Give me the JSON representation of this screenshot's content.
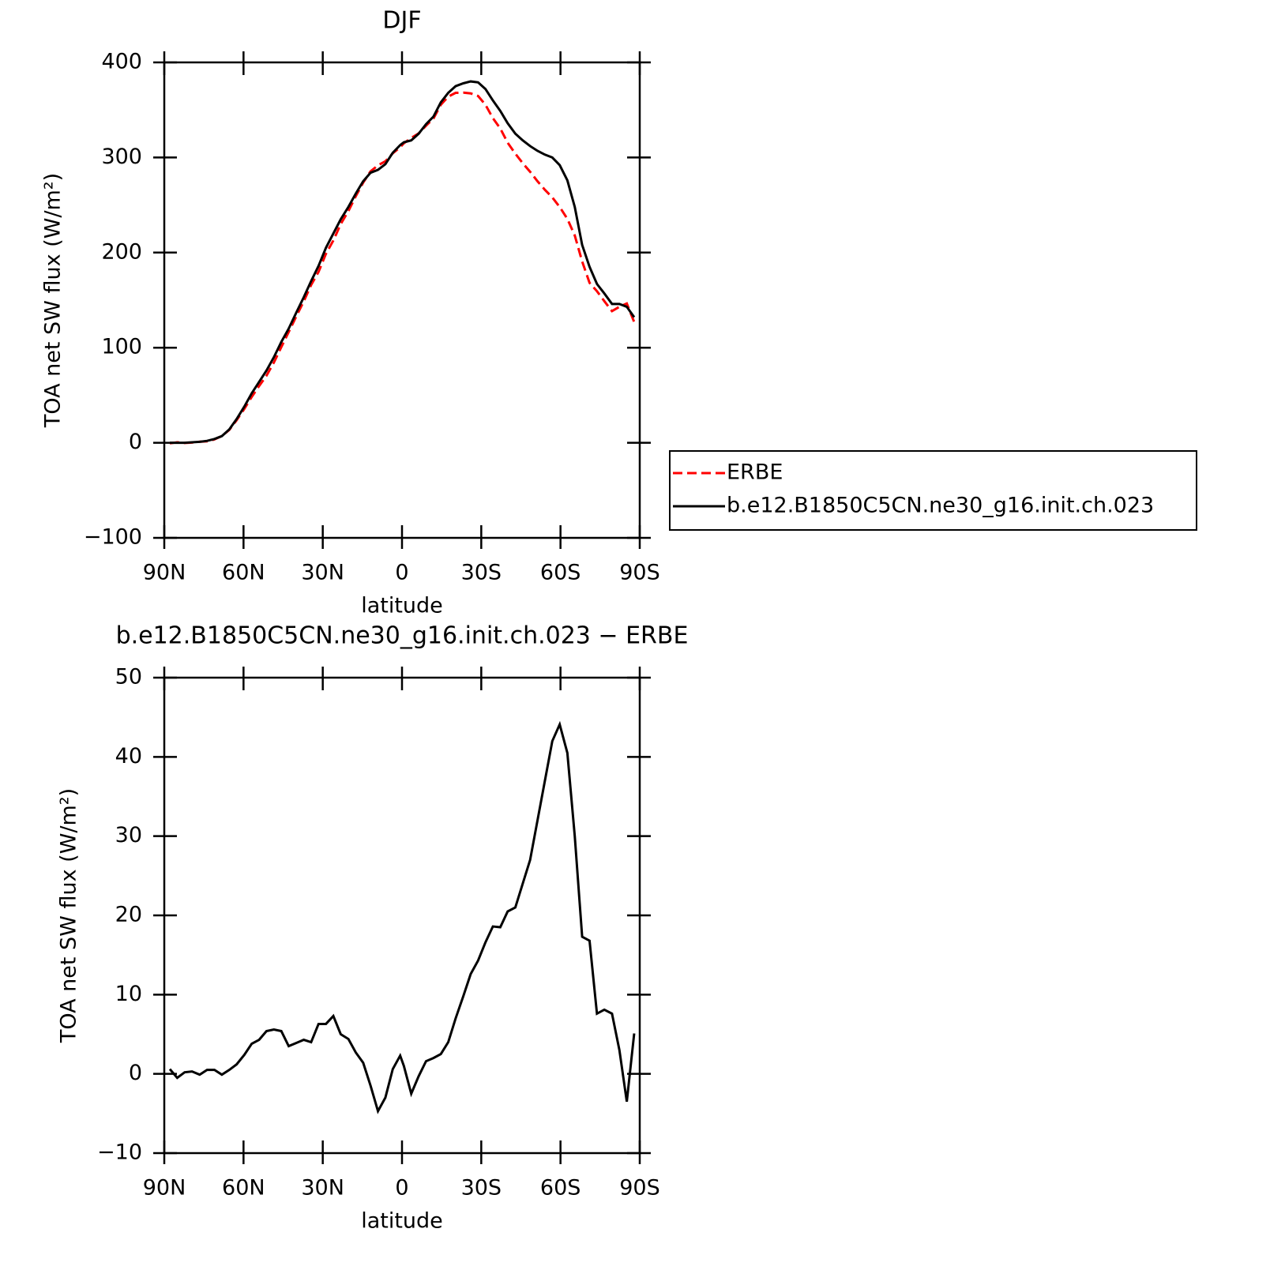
{
  "chart_data": [
    {
      "type": "line",
      "title": "DJF",
      "xlabel": "latitude",
      "ylabel": "TOA net SW flux (W/m²)",
      "x": [
        87.9,
        85.1,
        82.3,
        79.5,
        76.6,
        73.8,
        71.0,
        68.2,
        65.4,
        62.6,
        59.7,
        56.9,
        54.1,
        51.3,
        48.5,
        45.7,
        42.9,
        40.0,
        37.2,
        34.4,
        31.6,
        28.8,
        26.0,
        23.2,
        20.3,
        17.5,
        14.7,
        11.9,
        9.1,
        6.3,
        3.5,
        0.7,
        -0.7,
        -3.5,
        -6.3,
        -9.1,
        -11.9,
        -14.7,
        -17.5,
        -20.3,
        -23.2,
        -26.0,
        -28.8,
        -31.6,
        -34.4,
        -37.2,
        -40.0,
        -42.9,
        -45.7,
        -48.5,
        -51.3,
        -54.1,
        -56.9,
        -59.7,
        -62.6,
        -65.4,
        -68.2,
        -71.0,
        -73.8,
        -76.6,
        -79.5,
        -82.3,
        -85.1,
        -87.9
      ],
      "series": [
        {
          "name": "ERBE",
          "color": "#ff0000",
          "dashed": true,
          "values": [
            -0.6,
            0.5,
            -0.2,
            0.2,
            1.1,
            1.5,
            3.5,
            7.1,
            13.5,
            23.8,
            35.6,
            48.2,
            59.7,
            70.6,
            84.4,
            100.6,
            116.5,
            133.1,
            148.7,
            166,
            179.7,
            198.7,
            212.7,
            230,
            243.6,
            259.3,
            273.6,
            285.5,
            291.7,
            296,
            304.4,
            310.7,
            315,
            320.5,
            325.3,
            333.4,
            341,
            355.5,
            364,
            368,
            368.2,
            367.4,
            364.7,
            355.4,
            341.4,
            330.5,
            315.5,
            304,
            294,
            285,
            275,
            266,
            258,
            247.9,
            235.5,
            218,
            190.7,
            168.2,
            159.4,
            148.9,
            138.4,
            143,
            146.5,
            126.9
          ]
        },
        {
          "name": "b.e12.B1850C5CN.ne30_g16.init.ch.023",
          "color": "#000000",
          "dashed": false,
          "values": [
            0,
            0,
            0,
            0.5,
            1,
            2,
            4,
            7,
            14,
            25,
            38,
            52,
            64,
            76,
            90,
            106,
            120,
            137,
            153,
            170,
            186,
            205,
            220,
            235,
            248,
            262,
            275,
            284,
            287,
            293,
            305,
            313,
            316,
            318,
            325,
            335,
            343,
            358,
            368,
            375,
            378,
            380,
            379,
            372,
            360,
            349,
            336,
            325,
            318,
            312,
            307,
            303,
            300,
            292,
            276,
            248,
            208,
            185,
            167,
            157,
            146,
            146,
            143,
            132
          ]
        }
      ],
      "xlim": [
        90,
        -90
      ],
      "xticks": [
        {
          "value": 90,
          "label": "90N"
        },
        {
          "value": 60,
          "label": "60N"
        },
        {
          "value": 30,
          "label": "30N"
        },
        0,
        {
          "value": -30,
          "label": "30S"
        },
        {
          "value": -60,
          "label": "60S"
        },
        {
          "value": -90,
          "label": "90S"
        }
      ],
      "ylim": [
        -100,
        400
      ],
      "yticks": [
        {
          "value": -100,
          "label": "−100"
        },
        0,
        100,
        200,
        300,
        400
      ],
      "legend": "right"
    },
    {
      "type": "line",
      "title": "b.e12.B1850C5CN.ne30_g16.init.ch.023 − ERBE",
      "xlabel": "latitude",
      "ylabel": "TOA net SW flux (W/m²)",
      "x": [
        87.9,
        85.1,
        82.3,
        79.5,
        76.6,
        73.8,
        71.0,
        68.2,
        65.4,
        62.6,
        59.7,
        56.9,
        54.1,
        51.3,
        48.5,
        45.7,
        42.9,
        40.0,
        37.2,
        34.4,
        31.6,
        28.8,
        26.0,
        23.2,
        20.3,
        17.5,
        14.7,
        11.9,
        9.1,
        6.3,
        3.5,
        0.7,
        -0.7,
        -3.5,
        -6.3,
        -9.1,
        -11.9,
        -14.7,
        -17.5,
        -20.3,
        -23.2,
        -26.0,
        -28.8,
        -31.6,
        -34.4,
        -37.2,
        -40.0,
        -42.9,
        -45.7,
        -48.5,
        -51.3,
        -54.1,
        -56.9,
        -59.7,
        -62.6,
        -65.4,
        -68.2,
        -71.0,
        -73.8,
        -76.6,
        -79.5,
        -82.3,
        -85.1,
        -87.9
      ],
      "series": [
        {
          "color": "#000000",
          "dashed": false,
          "values": [
            0.6,
            -0.5,
            0.2,
            0.3,
            -0.1,
            0.5,
            0.5,
            -0.1,
            0.5,
            1.2,
            2.4,
            3.8,
            4.3,
            5.4,
            5.6,
            5.4,
            3.5,
            3.9,
            4.3,
            4.0,
            6.3,
            6.3,
            7.3,
            5.0,
            4.4,
            2.7,
            1.4,
            -1.5,
            -4.7,
            -3.0,
            0.6,
            2.3,
            1.0,
            -2.5,
            -0.3,
            1.6,
            2.0,
            2.5,
            4.0,
            7.0,
            9.8,
            12.6,
            14.3,
            16.6,
            18.6,
            18.5,
            20.5,
            21.0,
            24.0,
            27.0,
            32.0,
            37.0,
            42.0,
            44.1,
            40.5,
            30.0,
            17.3,
            16.8,
            7.6,
            8.1,
            7.6,
            3.0,
            -3.5,
            5.1
          ]
        }
      ],
      "xlim": [
        90,
        -90
      ],
      "xticks": [
        {
          "value": 90,
          "label": "90N"
        },
        {
          "value": 60,
          "label": "60N"
        },
        {
          "value": 30,
          "label": "30N"
        },
        0,
        {
          "value": -30,
          "label": "30S"
        },
        {
          "value": -60,
          "label": "60S"
        },
        {
          "value": -90,
          "label": "90S"
        }
      ],
      "ylim": [
        -10,
        50
      ],
      "yticks": [
        {
          "value": -10,
          "label": "−10"
        },
        0,
        10,
        20,
        30,
        40,
        50
      ]
    }
  ]
}
